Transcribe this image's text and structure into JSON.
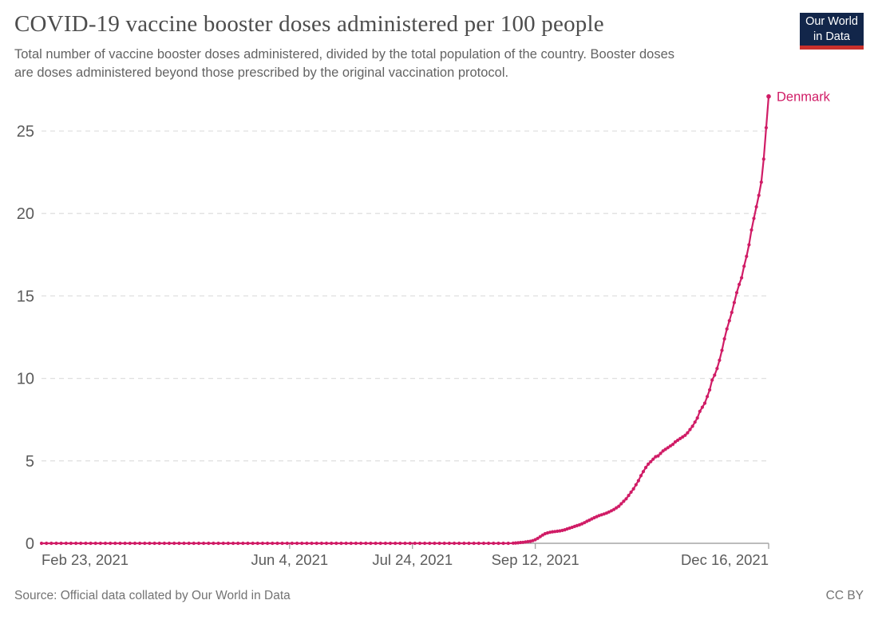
{
  "header": {
    "title": "COVID-19 vaccine booster doses administered per 100 people",
    "subtitle_line1": "Total number of vaccine booster doses administered, divided by the total population of the country. Booster doses",
    "subtitle_line2": "are doses administered beyond those prescribed by the original vaccination protocol.",
    "logo": {
      "line1": "Our World",
      "line2": "in Data",
      "bg_color": "#12264a",
      "stripe_color": "#c9302c",
      "text_color": "#ffffff"
    }
  },
  "footer": {
    "source": "Source: Official data collated by Our World in Data",
    "license": "CC BY"
  },
  "style": {
    "accent": "#d01c66",
    "grid_color": "#e0e0e0",
    "axis_color": "#a6a6a6",
    "tick_label_color": "#5b5b5b",
    "title_color": "#4d4d4d",
    "subtitle_color": "#636363"
  },
  "chart_data": {
    "type": "line",
    "title": "COVID-19 vaccine booster doses administered per 100 people",
    "xlabel": "",
    "ylabel": "",
    "legend_position": "end-of-line-label",
    "grid": "dashed-horizontal",
    "x_axis": {
      "unit": "days since Feb 23, 2021",
      "range_days": [
        0,
        296
      ],
      "ticks": [
        {
          "day": 0,
          "label": "Feb 23, 2021",
          "align": "start",
          "show_tick": false
        },
        {
          "day": 101,
          "label": "Jun 4, 2021",
          "align": "middle",
          "show_tick": true
        },
        {
          "day": 151,
          "label": "Jul 24, 2021",
          "align": "middle",
          "show_tick": true
        },
        {
          "day": 201,
          "label": "Sep 12, 2021",
          "align": "middle",
          "show_tick": true
        },
        {
          "day": 296,
          "label": "Dec 16, 2021",
          "align": "end",
          "show_tick": true
        }
      ]
    },
    "y_axis": {
      "range": [
        0,
        27.5
      ],
      "ticks": [
        0,
        5,
        10,
        15,
        20,
        25
      ]
    },
    "series": [
      {
        "name": "Denmark",
        "color": "#d01c66",
        "end_label": "Denmark",
        "points": [
          [
            0,
            0
          ],
          [
            2,
            0
          ],
          [
            4,
            0
          ],
          [
            6,
            0
          ],
          [
            8,
            0
          ],
          [
            10,
            0
          ],
          [
            12,
            0
          ],
          [
            14,
            0
          ],
          [
            16,
            0
          ],
          [
            18,
            0
          ],
          [
            20,
            0
          ],
          [
            22,
            0
          ],
          [
            24,
            0
          ],
          [
            26,
            0
          ],
          [
            28,
            0
          ],
          [
            30,
            0
          ],
          [
            32,
            0
          ],
          [
            34,
            0
          ],
          [
            36,
            0
          ],
          [
            38,
            0
          ],
          [
            40,
            0
          ],
          [
            42,
            0
          ],
          [
            44,
            0
          ],
          [
            46,
            0
          ],
          [
            48,
            0
          ],
          [
            50,
            0
          ],
          [
            52,
            0
          ],
          [
            54,
            0
          ],
          [
            56,
            0
          ],
          [
            58,
            0
          ],
          [
            60,
            0
          ],
          [
            62,
            0
          ],
          [
            64,
            0
          ],
          [
            66,
            0
          ],
          [
            68,
            0
          ],
          [
            70,
            0
          ],
          [
            72,
            0
          ],
          [
            74,
            0
          ],
          [
            76,
            0
          ],
          [
            78,
            0
          ],
          [
            80,
            0
          ],
          [
            82,
            0
          ],
          [
            84,
            0
          ],
          [
            86,
            0
          ],
          [
            88,
            0
          ],
          [
            90,
            0
          ],
          [
            92,
            0
          ],
          [
            94,
            0
          ],
          [
            96,
            0
          ],
          [
            98,
            0
          ],
          [
            100,
            0
          ],
          [
            102,
            0
          ],
          [
            104,
            0
          ],
          [
            106,
            0
          ],
          [
            108,
            0
          ],
          [
            110,
            0
          ],
          [
            112,
            0
          ],
          [
            114,
            0
          ],
          [
            116,
            0
          ],
          [
            118,
            0
          ],
          [
            120,
            0
          ],
          [
            122,
            0
          ],
          [
            124,
            0
          ],
          [
            126,
            0
          ],
          [
            128,
            0
          ],
          [
            130,
            0
          ],
          [
            132,
            0
          ],
          [
            134,
            0
          ],
          [
            136,
            0
          ],
          [
            138,
            0
          ],
          [
            140,
            0
          ],
          [
            142,
            0
          ],
          [
            144,
            0
          ],
          [
            146,
            0
          ],
          [
            148,
            0
          ],
          [
            150,
            0
          ],
          [
            152,
            0
          ],
          [
            154,
            0
          ],
          [
            156,
            0
          ],
          [
            158,
            0
          ],
          [
            160,
            0
          ],
          [
            162,
            0
          ],
          [
            164,
            0
          ],
          [
            166,
            0
          ],
          [
            168,
            0
          ],
          [
            170,
            0
          ],
          [
            172,
            0
          ],
          [
            174,
            0
          ],
          [
            176,
            0
          ],
          [
            178,
            0
          ],
          [
            180,
            0
          ],
          [
            182,
            0
          ],
          [
            184,
            0
          ],
          [
            186,
            0
          ],
          [
            188,
            0
          ],
          [
            190,
            0
          ],
          [
            192,
            0.01
          ],
          [
            193,
            0.02
          ],
          [
            194,
            0.03
          ],
          [
            195,
            0.05
          ],
          [
            196,
            0.06
          ],
          [
            197,
            0.08
          ],
          [
            198,
            0.1
          ],
          [
            199,
            0.12
          ],
          [
            200,
            0.16
          ],
          [
            201,
            0.22
          ],
          [
            202,
            0.3
          ],
          [
            203,
            0.4
          ],
          [
            204,
            0.5
          ],
          [
            205,
            0.58
          ],
          [
            206,
            0.63
          ],
          [
            207,
            0.67
          ],
          [
            208,
            0.7
          ],
          [
            209,
            0.71
          ],
          [
            210,
            0.73
          ],
          [
            211,
            0.75
          ],
          [
            212,
            0.78
          ],
          [
            213,
            0.82
          ],
          [
            214,
            0.87
          ],
          [
            215,
            0.92
          ],
          [
            216,
            0.97
          ],
          [
            217,
            1.02
          ],
          [
            218,
            1.07
          ],
          [
            219,
            1.12
          ],
          [
            220,
            1.18
          ],
          [
            221,
            1.25
          ],
          [
            222,
            1.33
          ],
          [
            223,
            1.4
          ],
          [
            224,
            1.48
          ],
          [
            225,
            1.55
          ],
          [
            226,
            1.62
          ],
          [
            227,
            1.68
          ],
          [
            228,
            1.73
          ],
          [
            229,
            1.78
          ],
          [
            230,
            1.83
          ],
          [
            231,
            1.9
          ],
          [
            232,
            1.97
          ],
          [
            233,
            2.05
          ],
          [
            234,
            2.15
          ],
          [
            235,
            2.25
          ],
          [
            236,
            2.4
          ],
          [
            237,
            2.55
          ],
          [
            238,
            2.7
          ],
          [
            239,
            2.9
          ],
          [
            240,
            3.1
          ],
          [
            241,
            3.3
          ],
          [
            242,
            3.55
          ],
          [
            243,
            3.8
          ],
          [
            244,
            4.1
          ],
          [
            245,
            4.35
          ],
          [
            246,
            4.6
          ],
          [
            247,
            4.8
          ],
          [
            248,
            4.95
          ],
          [
            249,
            5.1
          ],
          [
            250,
            5.25
          ],
          [
            251,
            5.3
          ],
          [
            252,
            5.45
          ],
          [
            253,
            5.6
          ],
          [
            254,
            5.7
          ],
          [
            255,
            5.8
          ],
          [
            256,
            5.9
          ],
          [
            257,
            6.0
          ],
          [
            258,
            6.15
          ],
          [
            259,
            6.25
          ],
          [
            260,
            6.35
          ],
          [
            261,
            6.45
          ],
          [
            262,
            6.55
          ],
          [
            263,
            6.7
          ],
          [
            264,
            6.9
          ],
          [
            265,
            7.1
          ],
          [
            266,
            7.35
          ],
          [
            267,
            7.6
          ],
          [
            268,
            8.0
          ],
          [
            269,
            8.25
          ],
          [
            270,
            8.5
          ],
          [
            271,
            8.9
          ],
          [
            272,
            9.3
          ],
          [
            273,
            9.9
          ],
          [
            274,
            10.2
          ],
          [
            275,
            10.6
          ],
          [
            276,
            11.1
          ],
          [
            277,
            11.7
          ],
          [
            278,
            12.4
          ],
          [
            279,
            13.0
          ],
          [
            280,
            13.5
          ],
          [
            281,
            14.0
          ],
          [
            282,
            14.6
          ],
          [
            283,
            15.2
          ],
          [
            284,
            15.7
          ],
          [
            285,
            16.1
          ],
          [
            286,
            16.8
          ],
          [
            287,
            17.4
          ],
          [
            288,
            18.1
          ],
          [
            289,
            19.0
          ],
          [
            290,
            19.7
          ],
          [
            291,
            20.4
          ],
          [
            292,
            21.1
          ],
          [
            293,
            21.9
          ],
          [
            294,
            23.3
          ],
          [
            295,
            25.2
          ],
          [
            296,
            27.1
          ]
        ]
      }
    ]
  }
}
